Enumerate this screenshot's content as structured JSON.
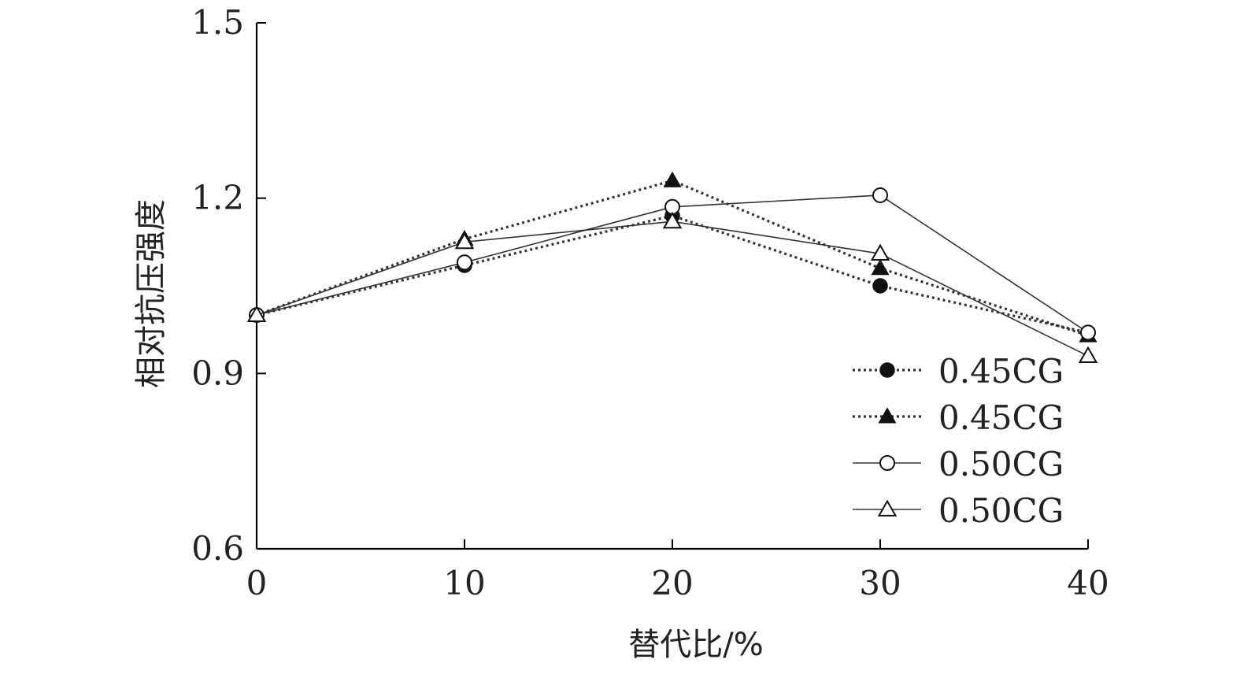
{
  "chart_data": {
    "type": "line",
    "title": "",
    "xlabel": "替代比/%",
    "ylabel": "相对抗压强度",
    "x": [
      0,
      10,
      20,
      30,
      40
    ],
    "xticks": [
      "0",
      "10",
      "20",
      "30",
      "40"
    ],
    "yticks": [
      "0.6",
      "0.9",
      "1.2",
      "1.5"
    ],
    "xlim": [
      0,
      40
    ],
    "ylim": [
      0.6,
      1.5
    ],
    "grid": false,
    "legend_position": "bottom-right",
    "series": [
      {
        "name": "0.45CG",
        "marker": "circle-filled",
        "line": "dotted",
        "values": [
          1.0,
          1.085,
          1.17,
          1.05,
          0.97
        ]
      },
      {
        "name": "0.45CG",
        "marker": "triangle-filled",
        "line": "dotted",
        "values": [
          1.0,
          1.13,
          1.23,
          1.08,
          0.965
        ]
      },
      {
        "name": "0.50CG",
        "marker": "circle-open",
        "line": "solid",
        "values": [
          1.0,
          1.09,
          1.185,
          1.205,
          0.97
        ]
      },
      {
        "name": "0.50CG",
        "marker": "triangle-open",
        "line": "solid",
        "values": [
          1.0,
          1.125,
          1.16,
          1.105,
          0.93
        ]
      }
    ],
    "colors": {
      "line": "#333333",
      "marker": "#111111",
      "axis": "#000000"
    }
  }
}
